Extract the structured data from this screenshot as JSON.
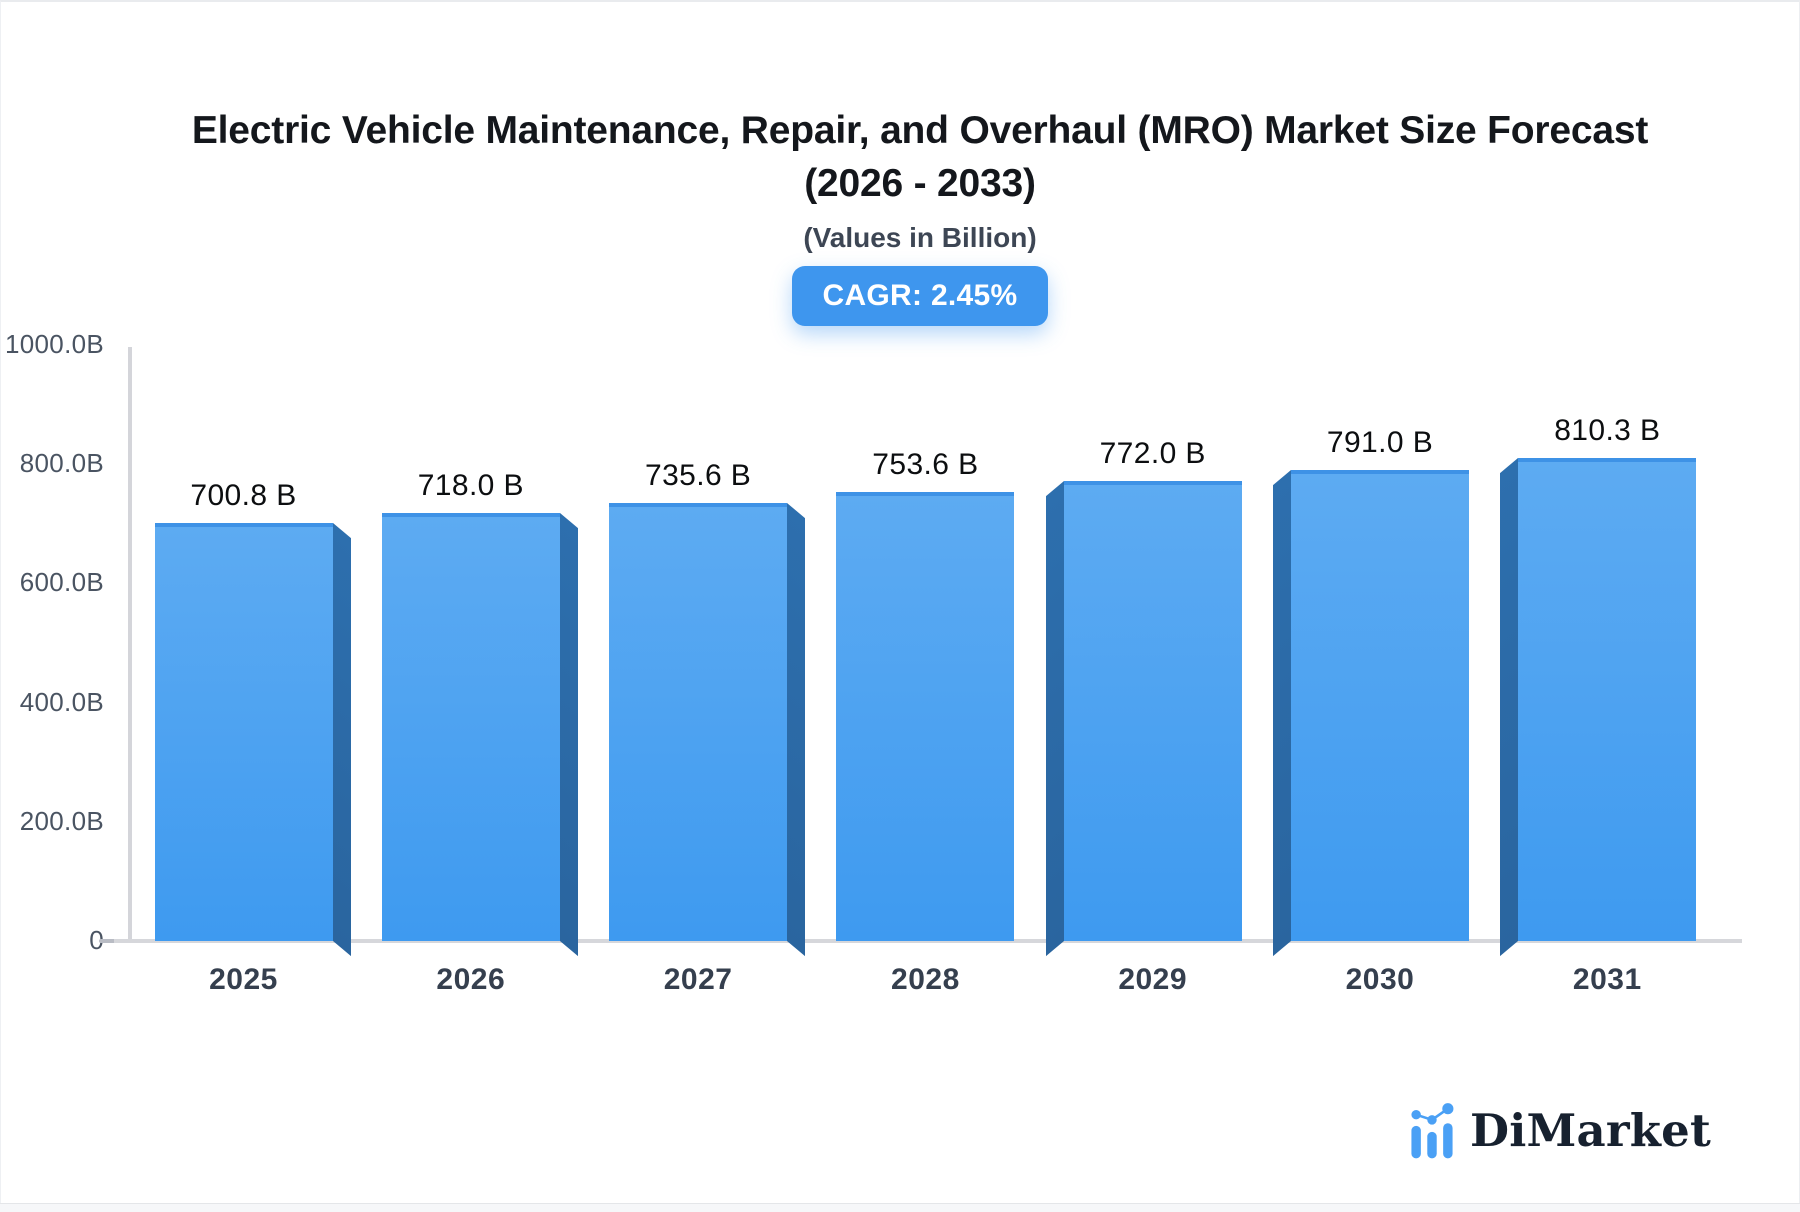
{
  "header": {
    "title_line1": "Electric Vehicle Maintenance, Repair, and Overhaul (MRO) Market Size Forecast",
    "title_line2": "(2026 - 2033)",
    "subtitle": "(Values in Billion)",
    "cagr_badge": "CAGR: 2.45%"
  },
  "chart_data": {
    "type": "bar",
    "title": "Electric Vehicle Maintenance, Repair, and Overhaul (MRO) Market Size Forecast (2026 - 2033)",
    "subtitle": "(Values in Billion)",
    "annotation": "CAGR: 2.45%",
    "categories": [
      "2025",
      "2026",
      "2027",
      "2028",
      "2029",
      "2030",
      "2031"
    ],
    "values": [
      700.8,
      718.0,
      735.6,
      753.6,
      772.0,
      791.0,
      810.3
    ],
    "value_labels": [
      "700.8 B",
      "718.0 B",
      "735.6 B",
      "753.6 B",
      "772.0 B",
      "791.0 B",
      "810.3 B"
    ],
    "xlabel": "",
    "ylabel": "",
    "ylim": [
      0,
      1000
    ],
    "y_ticks": [
      {
        "label": "1000.0B",
        "value": 1000
      },
      {
        "label": "800.0B",
        "value": 800
      },
      {
        "label": "600.0B",
        "value": 600
      },
      {
        "label": "400.0B",
        "value": 400
      },
      {
        "label": "200.0B",
        "value": 200
      },
      {
        "label": "0",
        "value": 0
      }
    ],
    "grid": false,
    "legend": "none",
    "bar_style": "3d"
  },
  "footer": {
    "brand": "DiMarket"
  },
  "colors": {
    "badge_bg": "#3e96ee",
    "bar_face_top": "#5dabf2",
    "bar_face_bottom": "#3e9af0",
    "bar_top_edge": "#3e92e6",
    "bar_side": "#2d6fae",
    "logo_blue": "#4aa0f5",
    "logo_text": "#17212f",
    "axis_line": "#d4d5da"
  }
}
